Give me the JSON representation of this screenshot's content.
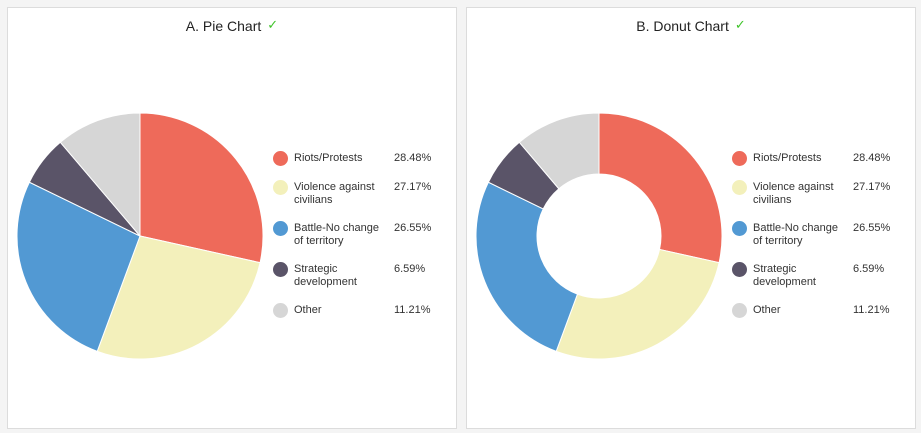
{
  "chart_data": [
    {
      "type": "pie",
      "title": "A. Pie Chart",
      "title_icon": "check-icon",
      "legend": "right",
      "categories": [
        "Riots/Protests",
        "Violence against civilians",
        "Battle-No change of territory",
        "Strategic development",
        "Other"
      ],
      "values": [
        28.48,
        27.17,
        26.55,
        6.59,
        11.21
      ],
      "labels": [
        "28.48%",
        "27.17%",
        "26.55%",
        "6.59%",
        "11.21%"
      ],
      "colors": [
        "#ee6a5a",
        "#f3f0bb",
        "#5299d3",
        "#5a5468",
        "#d6d6d6"
      ]
    },
    {
      "type": "donut",
      "title": "B. Donut Chart",
      "title_icon": "check-icon",
      "legend": "right",
      "categories": [
        "Riots/Protests",
        "Violence against civilians",
        "Battle-No change of territory",
        "Strategic development",
        "Other"
      ],
      "values": [
        28.48,
        27.17,
        26.55,
        6.59,
        11.21
      ],
      "labels": [
        "28.48%",
        "27.17%",
        "26.55%",
        "6.59%",
        "11.21%"
      ],
      "colors": [
        "#ee6a5a",
        "#f3f0bb",
        "#5299d3",
        "#5a5468",
        "#d6d6d6"
      ]
    }
  ],
  "check_glyph": "✓"
}
